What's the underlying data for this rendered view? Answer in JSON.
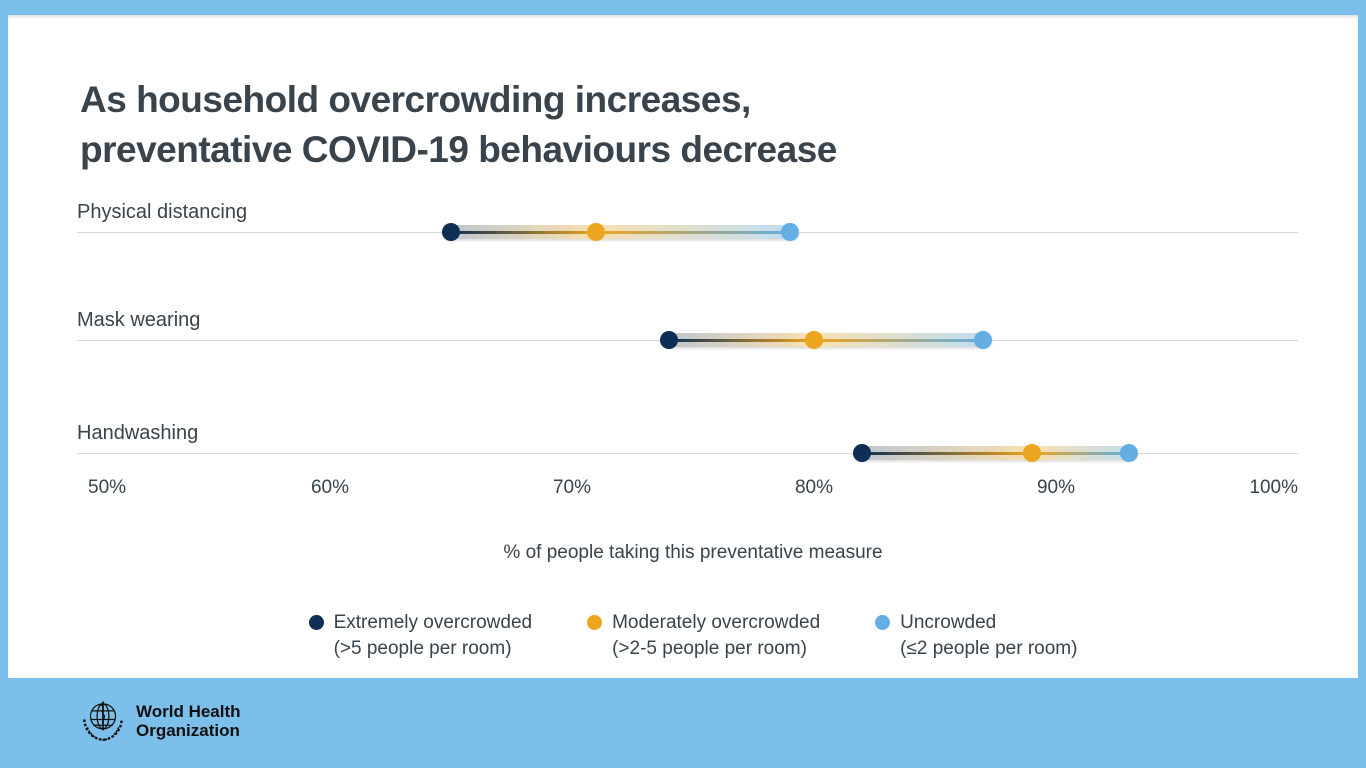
{
  "colors": {
    "frame_blue": "#7cbfea",
    "navy": "#0e2e55",
    "orange": "#eca51f",
    "light_blue": "#64aee4",
    "gridline": "#d9d9d9",
    "text": "#39434c"
  },
  "title": {
    "line1": "As household overcrowding increases,",
    "line2": "preventative COVID-19 behaviours decrease"
  },
  "chart_data": {
    "type": "dumbbell",
    "categories": [
      "Physical distancing",
      "Mask wearing",
      "Handwashing"
    ],
    "series": [
      {
        "name": "Extremely overcrowded (>5 people per room)",
        "color": "#0e2e55",
        "values": [
          65,
          74,
          82
        ]
      },
      {
        "name": "Moderately overcrowded (>2-5 people per room)",
        "color": "#eca51f",
        "values": [
          71,
          80,
          89
        ]
      },
      {
        "name": "Uncrowded (≤2 people per room)",
        "color": "#64aee4",
        "values": [
          79,
          87,
          93
        ]
      }
    ],
    "x_ticks": [
      "50%",
      "60%",
      "70%",
      "80%",
      "90%",
      "100%"
    ],
    "xlim": [
      50,
      100
    ],
    "xlabel": "% of people taking this preventative measure",
    "grid": "light horizontal line per category",
    "legend_position": "bottom"
  },
  "legend": {
    "items": [
      {
        "label": "Extremely overcrowded",
        "sublabel": "(>5 people per room)",
        "color": "#0e2e55"
      },
      {
        "label": "Moderately overcrowded",
        "sublabel": "(>2-5 people per room)",
        "color": "#eca51f"
      },
      {
        "label": "Uncrowded",
        "sublabel": "(≤2 people per room)",
        "color": "#64aee4"
      }
    ]
  },
  "footer": {
    "org_name_line1": "World Health",
    "org_name_line2": "Organization"
  }
}
